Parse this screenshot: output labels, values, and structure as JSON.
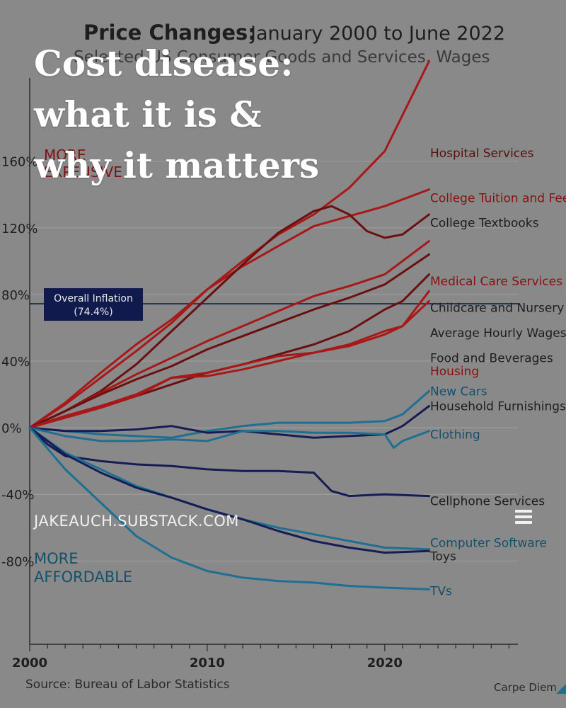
{
  "overlay": {
    "title_lines": [
      "Cost disease:",
      "what it is &",
      "why it matters"
    ],
    "site": "JAKEAUCH.SUBSTACK.COM",
    "menu_icon": "menu-icon"
  },
  "chart_data": {
    "type": "line",
    "title": "Price Changes:",
    "title_range": "January 2000 to June 2022",
    "subtitle": "Selected US Consumer Goods and Services, Wages",
    "xlabel": "",
    "ylabel": "",
    "xlim": [
      2000,
      2027.5
    ],
    "ylim": [
      -130,
      210
    ],
    "x_ticks": [
      2000,
      2010,
      2020
    ],
    "x_tick_labels": [
      "2000",
      "2010",
      "2020"
    ],
    "y_ticks": [
      160,
      120,
      80,
      40,
      0,
      -40,
      -80
    ],
    "y_tick_labels": [
      "160%",
      "120%",
      "80%",
      "40%",
      "0%",
      "-40%",
      "-80%"
    ],
    "grid": true,
    "reference_line": {
      "value": 74.4,
      "label": "Overall Inflation",
      "sublabel": "(74.4%)"
    },
    "annotations": {
      "more_expensive": "MORE EXPENSIVE",
      "more_affordable": "MORE AFFORDABLE"
    },
    "source": "Source: Bureau of Labor Statistics",
    "credit": "Carpe Diem",
    "colors": {
      "background": "#898989",
      "plot_bg": "#8b8b8b",
      "grid": "#9a9a9a",
      "axis": "#2a2a2a",
      "text": "#1e1e1e",
      "red": "#a81818",
      "dark_red": "#6b1010",
      "blue": "#1f6f92",
      "navy": "#161d55",
      "inflation_box": "#111a4d",
      "inflation_text": "#e8e8e8"
    },
    "series": [
      {
        "name": "Hospital Services",
        "color": "#a81818",
        "label_color": "#5a0f0f",
        "label_y": 165,
        "x": [
          2000,
          2002,
          2004,
          2006,
          2008,
          2010,
          2012,
          2014,
          2016,
          2018,
          2020,
          2022.5
        ],
        "values": [
          0,
          14,
          30,
          46,
          63,
          83,
          100,
          116,
          128,
          144,
          166,
          220
        ]
      },
      {
        "name": "College Tuition and Fees",
        "color": "#a81818",
        "label_color": "#8a1010",
        "label_y": 138,
        "x": [
          2000,
          2002,
          2004,
          2006,
          2008,
          2010,
          2012,
          2014,
          2016,
          2018,
          2020,
          2022.5
        ],
        "values": [
          0,
          15,
          33,
          50,
          65,
          83,
          97,
          109,
          121,
          127,
          133,
          143
        ]
      },
      {
        "name": "College Textbooks",
        "color": "#6b1010",
        "label_color": "#1e1e1e",
        "label_y": 123,
        "x": [
          2000,
          2002,
          2004,
          2006,
          2008,
          2010,
          2012,
          2014,
          2016,
          2017,
          2018,
          2019,
          2020,
          2021,
          2022.5
        ],
        "values": [
          0,
          10,
          22,
          38,
          58,
          78,
          98,
          117,
          130,
          133,
          128,
          118,
          114,
          116,
          128
        ]
      },
      {
        "name": "Medical Care Services",
        "color": "#a81818",
        "label_color": "#8a1010",
        "label_y": 88,
        "x": [
          2000,
          2002,
          2004,
          2006,
          2008,
          2010,
          2012,
          2014,
          2016,
          2018,
          2020,
          2022.5
        ],
        "values": [
          0,
          10,
          21,
          32,
          42,
          52,
          61,
          70,
          79,
          85,
          92,
          112
        ]
      },
      {
        "name": "Childcare and Nursery School",
        "color": "#6b1010",
        "label_color": "#1e1e1e",
        "label_y": 72,
        "x": [
          2000,
          2002,
          2004,
          2006,
          2008,
          2010,
          2012,
          2014,
          2016,
          2018,
          2020,
          2022.5
        ],
        "values": [
          0,
          10,
          20,
          29,
          37,
          47,
          55,
          63,
          71,
          78,
          86,
          104
        ]
      },
      {
        "name": "Average Hourly Wages",
        "color": "#6b1010",
        "label_color": "#1e1e1e",
        "label_y": 57,
        "x": [
          2000,
          2002,
          2004,
          2006,
          2008,
          2010,
          2012,
          2014,
          2016,
          2018,
          2020,
          2021,
          2022.5
        ],
        "values": [
          0,
          7,
          13,
          19,
          26,
          33,
          38,
          44,
          50,
          58,
          71,
          76,
          92
        ]
      },
      {
        "name": "Food and Beverages",
        "color": "#a81818",
        "label_color": "#1e1e1e",
        "label_y": 42,
        "x": [
          2000,
          2002,
          2004,
          2006,
          2008,
          2010,
          2012,
          2014,
          2016,
          2018,
          2020,
          2021,
          2022.5
        ],
        "values": [
          0,
          6,
          12,
          19,
          30,
          33,
          38,
          43,
          45,
          49,
          56,
          61,
          82
        ]
      },
      {
        "name": "Housing",
        "color": "#a81818",
        "label_color": "#8a1010",
        "label_y": 34,
        "x": [
          2000,
          2002,
          2004,
          2006,
          2008,
          2010,
          2012,
          2014,
          2016,
          2018,
          2020,
          2021,
          2022.5
        ],
        "values": [
          0,
          7,
          13,
          20,
          30,
          31,
          35,
          40,
          45,
          50,
          58,
          61,
          76
        ]
      },
      {
        "name": "New Cars",
        "color": "#1f6f92",
        "label_color": "#15506b",
        "label_y": 22,
        "x": [
          2000,
          2002,
          2004,
          2006,
          2008,
          2010,
          2012,
          2014,
          2016,
          2018,
          2020,
          2021,
          2022.5
        ],
        "values": [
          0,
          -2,
          -4,
          -5,
          -6,
          -2,
          1,
          3,
          3,
          3,
          4,
          8,
          22
        ]
      },
      {
        "name": "Household Furnishings",
        "color": "#161d55",
        "label_color": "#1e1e1e",
        "label_y": 13,
        "x": [
          2000,
          2002,
          2004,
          2006,
          2008,
          2010,
          2012,
          2014,
          2016,
          2018,
          2020,
          2021,
          2022.5
        ],
        "values": [
          0,
          -2,
          -2,
          -1,
          1,
          -3,
          -2,
          -4,
          -6,
          -5,
          -4,
          1,
          13
        ]
      },
      {
        "name": "Clothing",
        "color": "#1f6f92",
        "label_color": "#15506b",
        "label_y": -4,
        "x": [
          2000,
          2002,
          2004,
          2006,
          2008,
          2010,
          2012,
          2014,
          2016,
          2018,
          2020,
          2020.5,
          2021,
          2022.5
        ],
        "values": [
          0,
          -5,
          -8,
          -8,
          -7,
          -8,
          -2,
          -2,
          -3,
          -3,
          -4,
          -12,
          -8,
          -2
        ]
      },
      {
        "name": "Cellphone Services",
        "color": "#161d55",
        "label_color": "#1e1e1e",
        "label_y": -44,
        "x": [
          2000,
          2001,
          2002,
          2004,
          2006,
          2008,
          2010,
          2012,
          2014,
          2016,
          2017,
          2018,
          2020,
          2022.5
        ],
        "values": [
          0,
          -10,
          -17,
          -20,
          -22,
          -23,
          -25,
          -26,
          -26,
          -27,
          -38,
          -41,
          -40,
          -41
        ]
      },
      {
        "name": "Computer Software",
        "color": "#1f6f92",
        "label_color": "#15506b",
        "label_y": -69,
        "x": [
          2000,
          2002,
          2004,
          2006,
          2008,
          2010,
          2012,
          2014,
          2016,
          2018,
          2020,
          2022.5
        ],
        "values": [
          0,
          -15,
          -25,
          -35,
          -42,
          -49,
          -55,
          -60,
          -64,
          -68,
          -72,
          -73
        ]
      },
      {
        "name": "Toys",
        "color": "#161d55",
        "label_color": "#1e1e1e",
        "label_y": -77,
        "x": [
          2000,
          2002,
          2004,
          2006,
          2008,
          2010,
          2012,
          2014,
          2016,
          2018,
          2020,
          2022.5
        ],
        "values": [
          0,
          -16,
          -27,
          -36,
          -42,
          -49,
          -55,
          -62,
          -68,
          -72,
          -75,
          -74
        ]
      },
      {
        "name": "TVs",
        "color": "#1f6f92",
        "label_color": "#15506b",
        "label_y": -98,
        "x": [
          2000,
          2002,
          2004,
          2006,
          2008,
          2010,
          2012,
          2014,
          2016,
          2018,
          2020,
          2022.5
        ],
        "values": [
          0,
          -25,
          -45,
          -65,
          -78,
          -86,
          -90,
          -92,
          -93,
          -95,
          -96,
          -97
        ]
      }
    ]
  }
}
